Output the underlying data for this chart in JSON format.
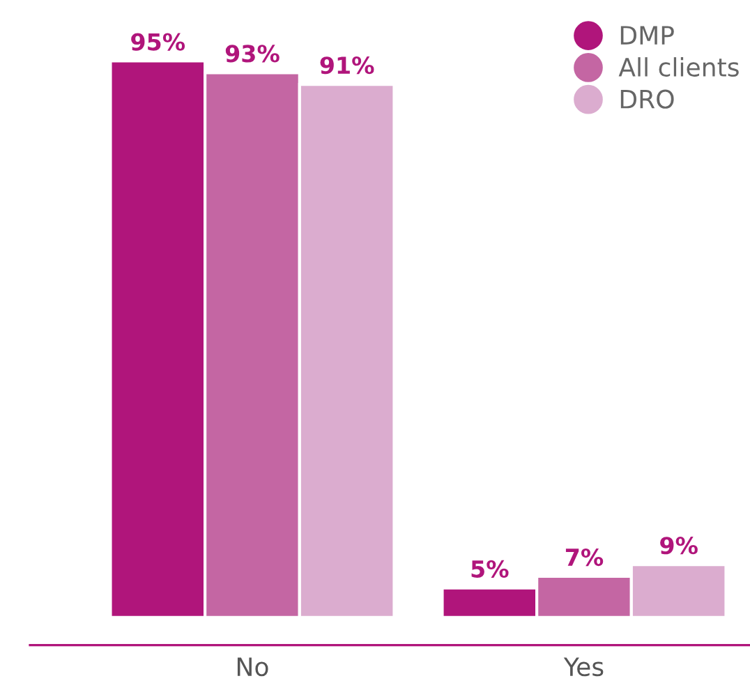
{
  "chart_data": {
    "type": "bar",
    "categories": [
      "No",
      "Yes"
    ],
    "series": [
      {
        "name": "DMP",
        "color": "#b0157b",
        "values": [
          95,
          5
        ],
        "value_labels": [
          "95%",
          "5%"
        ]
      },
      {
        "name": "All clients",
        "color": "#c466a3",
        "values": [
          93,
          7
        ],
        "value_labels": [
          "93%",
          "7%"
        ]
      },
      {
        "name": "DRO",
        "color": "#dbaccf",
        "values": [
          91,
          9
        ],
        "value_labels": [
          "91%",
          "9%"
        ]
      }
    ],
    "legend": "top right",
    "grid": false
  }
}
